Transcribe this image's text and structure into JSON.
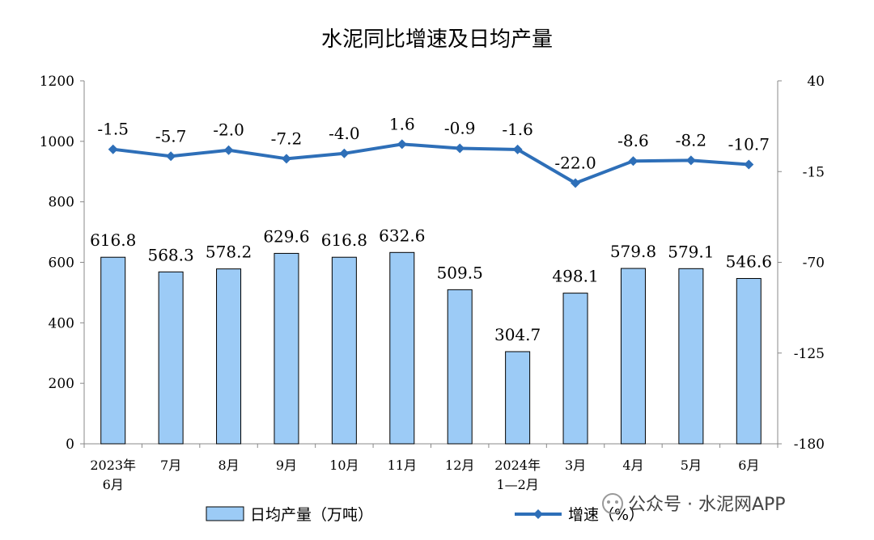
{
  "chart_data": {
    "type": "bar",
    "title": "水泥同比增速及日均产量",
    "categories": [
      "2023年\n6月",
      "7月",
      "8月",
      "9月",
      "10月",
      "11月",
      "12月",
      "2024年\n1—2月",
      "3月",
      "4月",
      "5月",
      "6月"
    ],
    "series": [
      {
        "name": "日均产量（万吨）",
        "type": "bar",
        "axis": "left",
        "color": "#9ccbf6",
        "values": [
          616.8,
          568.3,
          578.2,
          629.6,
          616.8,
          632.6,
          509.5,
          304.7,
          498.1,
          579.8,
          579.1,
          546.6
        ],
        "labels": [
          "616.8",
          "568.3",
          "578.2",
          "629.6",
          "616.8",
          "632.6",
          "509.5",
          "304.7",
          "498.1",
          "579.8",
          "579.1",
          "546.6"
        ]
      },
      {
        "name": "增速（%）",
        "type": "line",
        "axis": "right",
        "color": "#2e6fb8",
        "values": [
          -1.5,
          -5.7,
          -2.0,
          -7.2,
          -4.0,
          1.6,
          -0.9,
          -1.6,
          -22.0,
          -8.6,
          -8.2,
          -10.7
        ],
        "labels": [
          "-1.5",
          "-5.7",
          "-2.0",
          "-7.2",
          "-4.0",
          "1.6",
          "-0.9",
          "-1.6",
          "-22.0",
          "-8.6",
          "-8.2",
          "-10.7"
        ]
      }
    ],
    "y_left": {
      "min": 0,
      "max": 1200,
      "ticks": [
        0,
        200,
        400,
        600,
        800,
        1000,
        1200
      ]
    },
    "y_right": {
      "min": -180,
      "max": 40,
      "ticks": [
        -180,
        -125,
        -70,
        -15,
        40
      ]
    },
    "grid": false,
    "legend_position": "bottom"
  },
  "watermark": "公众号 · 水泥网APP"
}
